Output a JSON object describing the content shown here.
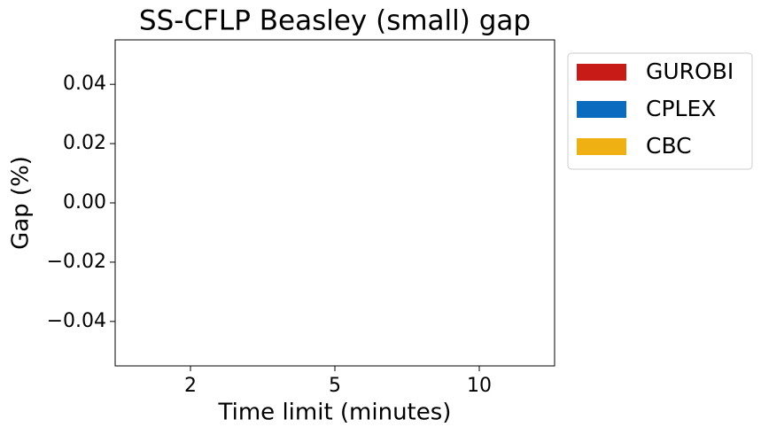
{
  "chart_data": {
    "type": "bar",
    "title": "SS-CFLP Beasley (small) gap",
    "x_label": "Time limit (minutes)",
    "y_label": "Gap (%)",
    "categories": [
      "2",
      "5",
      "10"
    ],
    "series": [
      {
        "name": "GUROBI",
        "color": "#c81a16",
        "values": [
          0,
          0,
          0
        ]
      },
      {
        "name": "CPLEX",
        "color": "#0b6bbf",
        "values": [
          0,
          0,
          0
        ]
      },
      {
        "name": "CBC",
        "color": "#eeb013",
        "values": [
          0,
          0,
          0
        ]
      }
    ],
    "ylim": [
      -0.055,
      0.055
    ],
    "yticks": [
      {
        "value": -0.04,
        "label": "−0.04"
      },
      {
        "value": -0.02,
        "label": "−0.02"
      },
      {
        "value": 0,
        "label": "0.00"
      },
      0.02,
      0.04
    ],
    "legend": "outside-upper-right"
  }
}
